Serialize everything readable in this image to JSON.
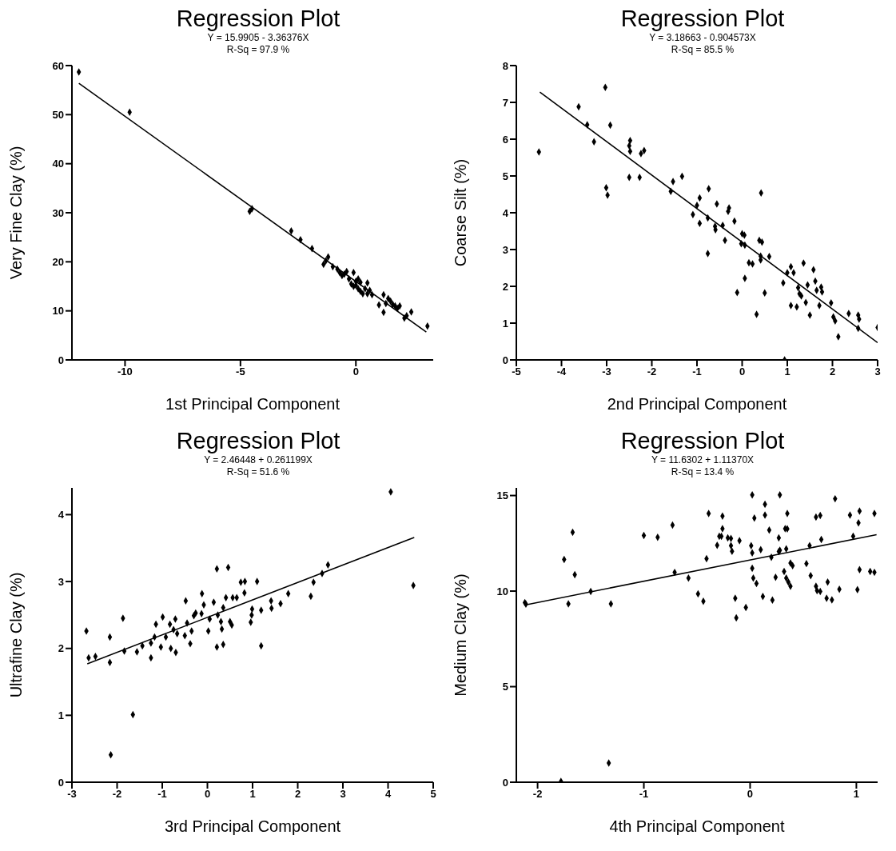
{
  "chart_data": [
    {
      "type": "scatter",
      "title": "Regression Plot",
      "subtitle": "Y = 15.9905 - 3.36376X",
      "annotations": [
        "R-Sq = 97.9 %"
      ],
      "xlabel": "1st Principal Component",
      "ylabel": "Very Fine Clay (%)",
      "xlim": [
        -12.3,
        3.35
      ],
      "xticks": [
        -10,
        -5,
        0
      ],
      "ylim": [
        0,
        60
      ],
      "yticks": [
        0,
        10,
        20,
        30,
        40,
        50,
        60
      ],
      "grid": false,
      "series": [
        {
          "marker": "diamond",
          "color": "#000000",
          "x": [
            -12,
            -9.8,
            -4.6,
            -4.5,
            -2.8,
            -2.4,
            -1.9,
            -1.4,
            -1.3,
            -1.2,
            -1.0,
            -0.8,
            -0.7,
            -0.6,
            -0.5,
            -0.4,
            -0.3,
            -0.2,
            -0.1,
            -0.1,
            0,
            0,
            0.1,
            0.1,
            0.2,
            0.2,
            0.3,
            0.4,
            0.5,
            0.5,
            0.6,
            0.7,
            1.0,
            1.2,
            1.2,
            1.3,
            1.4,
            1.5,
            1.6,
            1.7,
            1.8,
            1.9,
            2.1,
            2.2,
            2.4,
            3.1
          ],
          "values": [
            58.7,
            50.5,
            30.3,
            30.8,
            26.3,
            24.5,
            22.7,
            19.5,
            20.2,
            21,
            19,
            18.5,
            17.8,
            17.2,
            17.5,
            18,
            16.5,
            15.5,
            17.8,
            15,
            16,
            15.2,
            14.5,
            16.5,
            15.8,
            14,
            13.5,
            14.5,
            15.7,
            13.5,
            14.2,
            13.3,
            11.2,
            9.7,
            13.3,
            11.5,
            12.5,
            12,
            11.3,
            11,
            10.5,
            11,
            8.5,
            9,
            9.8,
            6.9
          ]
        },
        {
          "type": "line",
          "color": "#000000",
          "line_style": "solid",
          "x": [
            -12,
            3.05
          ],
          "values": [
            56.4,
            5.7
          ]
        }
      ]
    },
    {
      "type": "scatter",
      "title": "Regression Plot",
      "subtitle": "Y = 3.18663 - 0.904573X",
      "annotations": [
        "R-Sq = 85.5 %"
      ],
      "xlabel": "2nd Principal Component",
      "ylabel": "Coarse Silt (%)",
      "xlim": [
        -5,
        3
      ],
      "xticks": [
        -5,
        -4,
        -3,
        -2,
        -1,
        0,
        1,
        2,
        3
      ],
      "ylim": [
        0,
        8
      ],
      "yticks": [
        0,
        1,
        2,
        3,
        4,
        5,
        6,
        7,
        8
      ],
      "grid": false,
      "series": [
        {
          "marker": "diamond",
          "color": "#000000",
          "x": [
            -4.5,
            -3.62,
            -3.43,
            -3.28,
            -3.03,
            -2.92,
            -3.01,
            -2.98,
            -2.5,
            -2.48,
            -2.48,
            -2.5,
            -2.27,
            -2.24,
            -2.17,
            -1.58,
            -1.53,
            -1.33,
            -1.09,
            -1.0,
            -0.94,
            -0.94,
            -0.76,
            -0.74,
            -0.76,
            -0.6,
            -0.59,
            -0.56,
            -0.43,
            -0.38,
            -0.31,
            -0.29,
            -0.17,
            -0.11,
            0,
            0.05,
            -0.02,
            0.06,
            0.06,
            0.15,
            0.23,
            0.32,
            0.38,
            0.44,
            0.42,
            0.41,
            0.41,
            0.5,
            0.6,
            0.91,
            0.94,
            1.0,
            1.08,
            1.08,
            1.14,
            1.21,
            1.24,
            1.27,
            1.31,
            1.36,
            1.41,
            1.45,
            1.5,
            1.58,
            1.62,
            1.65,
            1.71,
            1.75,
            1.77,
            1.97,
            2.02,
            2.06,
            2.13,
            2.36,
            2.57,
            2.59,
            2.57,
            3.0
          ],
          "values": [
            5.65,
            6.88,
            6.39,
            5.93,
            7.41,
            6.38,
            4.68,
            4.48,
            5.82,
            5.96,
            5.67,
            4.96,
            4.96,
            5.61,
            5.69,
            4.58,
            4.85,
            4.99,
            3.95,
            4.2,
            4.4,
            3.71,
            2.89,
            4.65,
            3.86,
            3.63,
            3.54,
            4.24,
            3.66,
            3.25,
            4.04,
            4.13,
            3.77,
            1.83,
            3.43,
            3.39,
            3.16,
            3.12,
            2.22,
            2.64,
            2.61,
            1.24,
            3.25,
            3.2,
            4.54,
            2.82,
            2.72,
            1.82,
            2.81,
            2.09,
            0,
            2.37,
            2.53,
            1.48,
            2.37,
            1.44,
            1.96,
            1.8,
            1.74,
            2.63,
            1.56,
            2.04,
            1.22,
            2.45,
            2.14,
            1.89,
            1.48,
            1.98,
            1.85,
            1.55,
            1.17,
            1.06,
            0.63,
            1.26,
            1.22,
            1.11,
            0.86,
            0.88
          ]
        },
        {
          "type": "line",
          "color": "#000000",
          "line_style": "solid",
          "x": [
            -4.48,
            3.0
          ],
          "values": [
            7.28,
            0.47
          ]
        }
      ]
    },
    {
      "type": "scatter",
      "title": "Regression Plot",
      "subtitle": "Y = 2.46448 + 0.261199X",
      "annotations": [
        "R-Sq = 51.6 %"
      ],
      "xlabel": "3rd Principal Component",
      "ylabel": "Ultrafine Clay (%)",
      "xlim": [
        -3,
        5
      ],
      "xticks": [
        -3,
        -2,
        -1,
        0,
        1,
        2,
        3,
        4,
        5
      ],
      "ylim": [
        0,
        4.4
      ],
      "yticks": [
        0,
        1,
        2,
        3,
        4
      ],
      "grid": false,
      "series": [
        {
          "marker": "diamond",
          "color": "#000000",
          "x": [
            -2.68,
            -2.63,
            -2.48,
            -2.16,
            -2.16,
            -2.14,
            -1.87,
            -1.84,
            -1.65,
            -1.56,
            -1.44,
            -1.25,
            -1.25,
            -1.14,
            -1.17,
            -1.03,
            -0.99,
            -0.92,
            -0.83,
            -0.81,
            -0.75,
            -0.71,
            -0.7,
            -0.67,
            -0.5,
            -0.48,
            -0.45,
            -0.38,
            -0.35,
            -0.3,
            -0.26,
            -0.12,
            -0.13,
            -0.08,
            0.02,
            0.05,
            0.14,
            0.21,
            0.21,
            0.23,
            0.3,
            0.32,
            0.35,
            0.35,
            0.41,
            0.46,
            0.5,
            0.54,
            0.56,
            0.65,
            0.74,
            0.83,
            0.82,
            0.96,
            0.98,
            0.99,
            1.1,
            1.19,
            1.19,
            1.41,
            1.42,
            1.62,
            1.79,
            2.29,
            2.35,
            2.54,
            2.67,
            4.06,
            4.56
          ],
          "values": [
            2.26,
            1.86,
            1.88,
            2.17,
            1.79,
            0.41,
            2.45,
            1.96,
            1.01,
            1.95,
            2.04,
            2.08,
            1.86,
            2.36,
            2.17,
            2.02,
            2.47,
            2.17,
            2.36,
            2.0,
            2.28,
            2.44,
            1.94,
            2.22,
            2.19,
            2.71,
            2.38,
            2.07,
            2.26,
            2.49,
            2.53,
            2.82,
            2.52,
            2.65,
            2.26,
            2.44,
            2.69,
            3.19,
            2.02,
            2.5,
            2.4,
            2.29,
            2.06,
            2.61,
            2.76,
            3.21,
            2.4,
            2.35,
            2.76,
            2.76,
            2.99,
            3.0,
            2.83,
            2.39,
            2.5,
            2.59,
            3.0,
            2.57,
            2.04,
            2.71,
            2.6,
            2.67,
            2.82,
            2.78,
            2.99,
            3.12,
            3.25,
            4.34,
            2.94
          ]
        },
        {
          "type": "line",
          "color": "#000000",
          "line_style": "solid",
          "x": [
            -2.66,
            4.58
          ],
          "values": [
            1.77,
            3.66
          ]
        }
      ]
    },
    {
      "type": "scatter",
      "title": "Regression Plot",
      "subtitle": "Y = 11.6302 + 1.11370X",
      "annotations": [
        "R-Sq = 13.4 %"
      ],
      "xlabel": "4th Principal Component",
      "ylabel": "Medium Clay (%)",
      "xlim": [
        -2.2,
        1.2
      ],
      "xticks": [
        -2,
        -1,
        0,
        1
      ],
      "ylim": [
        0,
        15.4
      ],
      "yticks": [
        0,
        5,
        10,
        15
      ],
      "grid": false,
      "series": [
        {
          "marker": "diamond",
          "color": "#000000",
          "x": [
            -2.12,
            -2.11,
            -1.78,
            -1.75,
            -1.71,
            -1.67,
            -1.65,
            -1.5,
            -1.33,
            -1.31,
            -1.0,
            -0.87,
            -0.73,
            -0.71,
            -0.58,
            -0.49,
            -0.44,
            -0.41,
            -0.39,
            -0.31,
            -0.29,
            -0.27,
            -0.26,
            -0.26,
            -0.21,
            -0.18,
            -0.18,
            -0.17,
            -0.14,
            -0.13,
            -0.1,
            -0.04,
            0.01,
            0.02,
            0.02,
            0.02,
            0.03,
            0.04,
            0.06,
            0.1,
            0.12,
            0.14,
            0.14,
            0.18,
            0.2,
            0.21,
            0.24,
            0.27,
            0.27,
            0.28,
            0.28,
            0.32,
            0.33,
            0.35,
            0.34,
            0.35,
            0.34,
            0.36,
            0.38,
            0.38,
            0.4,
            0.53,
            0.56,
            0.57,
            0.62,
            0.63,
            0.62,
            0.66,
            0.67,
            0.66,
            0.72,
            0.73,
            0.77,
            0.8,
            0.84,
            0.94,
            0.97,
            1.01,
            1.02,
            1.03,
            1.03,
            1.13,
            1.17,
            1.17
          ],
          "values": [
            9.4,
            9.32,
            0.04,
            11.65,
            9.33,
            13.08,
            10.86,
            9.98,
            1.0,
            9.33,
            12.91,
            12.82,
            13.45,
            10.98,
            10.68,
            9.86,
            9.47,
            11.7,
            14.06,
            12.4,
            12.87,
            12.87,
            13.27,
            13.92,
            12.78,
            12.75,
            12.38,
            12.08,
            9.63,
            8.6,
            12.64,
            9.14,
            12.38,
            12.0,
            11.19,
            15.03,
            10.68,
            13.82,
            10.4,
            12.17,
            9.72,
            14.54,
            13.98,
            13.19,
            11.77,
            9.53,
            10.72,
            12.78,
            12.07,
            15.03,
            12.14,
            11.03,
            13.27,
            13.26,
            12.21,
            14.06,
            10.68,
            10.47,
            10.25,
            11.47,
            11.33,
            11.44,
            12.38,
            10.81,
            10.25,
            10.02,
            13.87,
            13.96,
            12.7,
            9.98,
            9.63,
            10.47,
            9.54,
            14.83,
            10.1,
            13.98,
            12.87,
            10.07,
            13.57,
            14.19,
            11.12,
            11.03,
            10.98,
            14.06
          ]
        },
        {
          "type": "line",
          "color": "#000000",
          "line_style": "solid",
          "x": [
            -2.12,
            1.19
          ],
          "values": [
            9.27,
            12.95
          ]
        }
      ]
    }
  ]
}
